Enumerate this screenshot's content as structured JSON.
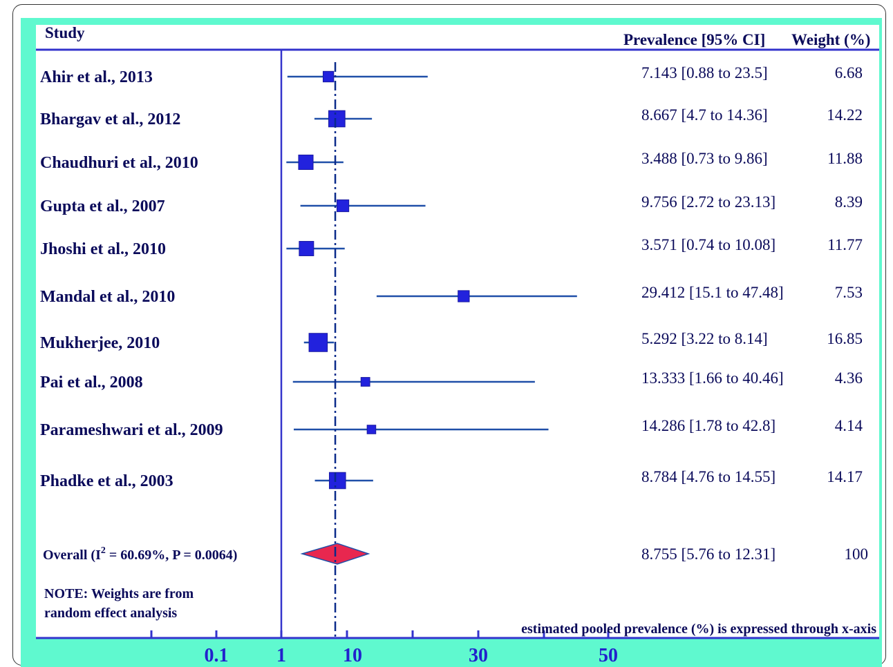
{
  "chart_data": {
    "type": "forest",
    "headers": {
      "study": "Study",
      "prevalence": "Prevalence [95% CI]",
      "weight": "Weight (%)"
    },
    "studies": [
      {
        "name": "Ahir et al., 2013",
        "estimate": 7.143,
        "lower": 0.88,
        "upper": 23.5,
        "ci_text": "7.143 [0.88 to 23.5]",
        "weight": "6.68"
      },
      {
        "name": "Bhargav et al., 2012",
        "estimate": 8.667,
        "lower": 4.7,
        "upper": 14.36,
        "ci_text": "8.667 [4.7 to 14.36]",
        "weight": "14.22"
      },
      {
        "name": "Chaudhuri et al., 2010",
        "estimate": 3.488,
        "lower": 0.73,
        "upper": 9.86,
        "ci_text": "3.488 [0.73 to 9.86]",
        "weight": "11.88"
      },
      {
        "name": "Gupta et al., 2007",
        "estimate": 9.756,
        "lower": 2.72,
        "upper": 23.13,
        "ci_text": "9.756 [2.72 to 23.13]",
        "weight": "8.39"
      },
      {
        "name": "Jhoshi et al., 2010",
        "estimate": 3.571,
        "lower": 0.74,
        "upper": 10.08,
        "ci_text": "3.571 [0.74 to 10.08]",
        "weight": "11.77"
      },
      {
        "name": "Mandal et al., 2010",
        "estimate": 29.412,
        "lower": 15.1,
        "upper": 47.48,
        "ci_text": "29.412 [15.1 to 47.48]",
        "weight": "7.53"
      },
      {
        "name": "Mukherjee, 2010",
        "estimate": 5.292,
        "lower": 3.22,
        "upper": 8.14,
        "ci_text": "5.292 [3.22 to 8.14]",
        "weight": "16.85"
      },
      {
        "name": "Pai et al., 2008",
        "estimate": 13.333,
        "lower": 1.66,
        "upper": 40.46,
        "ci_text": "13.333 [1.66 to 40.46]",
        "weight": "4.36"
      },
      {
        "name": "Parameshwari et al., 2009",
        "estimate": 14.286,
        "lower": 1.78,
        "upper": 42.8,
        "ci_text": "14.286 [1.78 to 42.8]",
        "weight": "4.14"
      },
      {
        "name": "Phadke et al., 2003",
        "estimate": 8.784,
        "lower": 4.76,
        "upper": 14.55,
        "ci_text": "8.784 [4.76 to 14.55]",
        "weight": "14.17"
      }
    ],
    "overall": {
      "label_prefix": "Overall (I",
      "label_sup": "2",
      "label_suffix": " = 60.69%, P = 0.0064)",
      "estimate": 8.755,
      "lower": 5.76,
      "upper": 12.31,
      "ci_text": "8.755 [5.76 to 12.31]",
      "weight": "100"
    },
    "note_lines": [
      "NOTE: Weights are from",
      "random effect analysis"
    ],
    "x_tick_labels": [
      "0.1",
      "1",
      "10",
      "30",
      "50"
    ],
    "x_caption": "estimated pooled prevalence (%) is expressed through x-axis",
    "colors": {
      "ci_line": "#1f4fa8",
      "marker": "#2222dd",
      "diamond": "#e8274f",
      "axis": "#3333cc",
      "pooled_line": "#0a2a8a",
      "teal_border": "#5ff9cf"
    }
  }
}
